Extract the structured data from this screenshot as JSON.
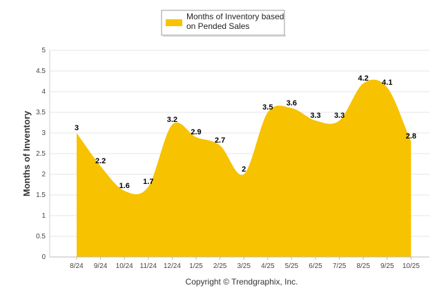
{
  "chart_data": {
    "type": "area",
    "categories": [
      "8/24",
      "9/24",
      "10/24",
      "11/24",
      "12/24",
      "1/25",
      "2/25",
      "3/25",
      "4/25",
      "5/25",
      "6/25",
      "7/25",
      "8/25",
      "9/25",
      "10/25"
    ],
    "series": [
      {
        "name": "Months of Inventory based on Pended Sales",
        "values": [
          3,
          2.2,
          1.6,
          1.7,
          3.2,
          2.9,
          2.7,
          2,
          3.5,
          3.6,
          3.3,
          3.3,
          4.2,
          4.1,
          2.8
        ],
        "color": "#f7c200"
      }
    ],
    "legend_lines": [
      "Months of Inventory based",
      "on Pended Sales"
    ],
    "ylabel": "Months of Inventory",
    "xlabel": "",
    "ylim": [
      0,
      5
    ],
    "yticks": [
      "0",
      "0.5",
      "1",
      "1.5",
      "2",
      "2.5",
      "3",
      "3.5",
      "4",
      "4.5",
      "5"
    ],
    "grid": true,
    "legend_position": "top-center"
  },
  "footer": "Copyright © Trendgraphix, Inc."
}
